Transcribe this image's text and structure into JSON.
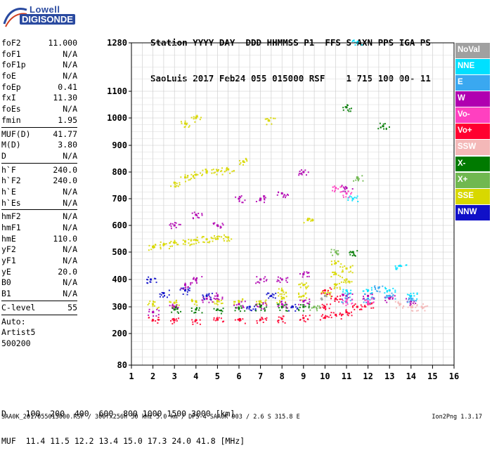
{
  "logo": {
    "line1": "Lowell",
    "line2": "DIGISONDE"
  },
  "header": {
    "line1": "Station YYYY DAY  DDD HHMMSS P1  FFS S AXN PPS IGA PS",
    "line2": "SaoLuis 2017 Feb24 055 015000 RSF    1 715 100 00- 11"
  },
  "params": {
    "group1": [
      {
        "k": "foF2",
        "v": "11.000"
      },
      {
        "k": "foF1",
        "v": "N/A"
      },
      {
        "k": "foF1p",
        "v": "N/A"
      },
      {
        "k": "foE",
        "v": "N/A"
      },
      {
        "k": "foEp",
        "v": "0.41"
      },
      {
        "k": "fxI",
        "v": "11.30"
      },
      {
        "k": "foEs",
        "v": "N/A"
      },
      {
        "k": "fmin",
        "v": "1.95"
      }
    ],
    "group2": [
      {
        "k": "MUF(D)",
        "v": "41.77"
      },
      {
        "k": "M(D)",
        "v": "3.80"
      },
      {
        "k": "D",
        "v": "N/A"
      }
    ],
    "group3": [
      {
        "k": "h`F",
        "v": "240.0"
      },
      {
        "k": "h`F2",
        "v": "240.0"
      },
      {
        "k": "h`E",
        "v": "N/A"
      },
      {
        "k": "h`Es",
        "v": "N/A"
      }
    ],
    "group4": [
      {
        "k": "hmF2",
        "v": "N/A"
      },
      {
        "k": "hmF1",
        "v": "N/A"
      },
      {
        "k": "hmE",
        "v": "110.0"
      },
      {
        "k": "yF2",
        "v": "N/A"
      },
      {
        "k": "yF1",
        "v": "N/A"
      },
      {
        "k": "yE",
        "v": "20.0"
      },
      {
        "k": "B0",
        "v": "N/A"
      },
      {
        "k": "B1",
        "v": "N/A"
      }
    ],
    "group5": [
      {
        "k": "C-level",
        "v": "55"
      }
    ],
    "auto": [
      "Auto:",
      "Artist5",
      "500200"
    ]
  },
  "legend": [
    {
      "label": "NoVal",
      "color": "#a0a0a0"
    },
    {
      "label": "NNE",
      "color": "#00e0ff"
    },
    {
      "label": "E",
      "color": "#3aa8f0"
    },
    {
      "label": "W",
      "color": "#b000b0"
    },
    {
      "label": "Vo-",
      "color": "#ff40c0"
    },
    {
      "label": "Vo+",
      "color": "#ff0030"
    },
    {
      "label": "SSW",
      "color": "#f4b8b8"
    },
    {
      "label": "X-",
      "color": "#007a00"
    },
    {
      "label": "X+",
      "color": "#70b850"
    },
    {
      "label": "SSE",
      "color": "#d8d800"
    },
    {
      "label": "NNW",
      "color": "#1010c8"
    }
  ],
  "bottom": {
    "line1": "D    100  200  400  600  800 1000 1500 3000 [km]",
    "line2": "MUF  11.4 11.5 12.2 13.4 15.0 17.3 24.0 41.8 [MHz]"
  },
  "footer": {
    "left": "SAA0K_2017055015000.RSF / 300fx256h 50 kHz 5.0 km / DPS-4 SAA0K 903 / 2.6 S 315.8 E",
    "right": "Ion2Png 1.3.17"
  },
  "chart_data": {
    "type": "scatter",
    "title": "",
    "xlabel": "",
    "ylabel": "",
    "xlim": [
      1,
      16
    ],
    "ylim": [
      80,
      1280
    ],
    "y_scale": "quasi-log",
    "x_ticks": [
      "1",
      "2",
      "3",
      "4",
      "5",
      "6",
      "7",
      "8",
      "9",
      "10",
      "11",
      "12",
      "13",
      "14",
      "15",
      "16"
    ],
    "y_ticks": [
      "80",
      "200",
      "300",
      "400",
      "500",
      "600",
      "700",
      "800",
      "900",
      "1000",
      "1100",
      "1280"
    ],
    "grid": true,
    "legend_position": "right",
    "series": [
      {
        "name": "SSE",
        "color": "#d8d800",
        "points": [
          [
            2.0,
            520
          ],
          [
            2.5,
            528
          ],
          [
            3.0,
            535
          ],
          [
            3.5,
            540
          ],
          [
            4.0,
            545
          ],
          [
            4.5,
            548
          ],
          [
            5.0,
            550
          ],
          [
            5.5,
            555
          ],
          [
            3.0,
            760
          ],
          [
            3.5,
            780
          ],
          [
            4.0,
            790
          ],
          [
            4.5,
            800
          ],
          [
            5.0,
            805
          ],
          [
            5.5,
            810
          ],
          [
            3.5,
            980
          ],
          [
            4.0,
            1000
          ],
          [
            2.0,
            310
          ],
          [
            3.0,
            315
          ],
          [
            4.0,
            320
          ],
          [
            5.0,
            320
          ],
          [
            6.0,
            320
          ],
          [
            7.0,
            320
          ],
          [
            8.0,
            330
          ],
          [
            9.0,
            340
          ],
          [
            10.0,
            350
          ],
          [
            10.5,
            380
          ],
          [
            10.5,
            420
          ],
          [
            10.5,
            460
          ],
          [
            11.0,
            400
          ],
          [
            11.0,
            440
          ],
          [
            6.2,
            840
          ],
          [
            7.4,
            990
          ],
          [
            8.0,
            360
          ],
          [
            9.0,
            380
          ],
          [
            9.2,
            620
          ]
        ]
      },
      {
        "name": "W",
        "color": "#b000b0",
        "points": [
          [
            2.0,
            280
          ],
          [
            3.0,
            300
          ],
          [
            3.5,
            380
          ],
          [
            4.0,
            400
          ],
          [
            4.5,
            330
          ],
          [
            5.0,
            340
          ],
          [
            6.0,
            310
          ],
          [
            7.0,
            305
          ],
          [
            7.0,
            400
          ],
          [
            8.0,
            310
          ],
          [
            8.0,
            400
          ],
          [
            9.0,
            320
          ],
          [
            9.0,
            420
          ],
          [
            3.0,
            600
          ],
          [
            4.0,
            640
          ],
          [
            5.0,
            600
          ],
          [
            6.0,
            700
          ],
          [
            7.0,
            700
          ],
          [
            8.0,
            720
          ],
          [
            9.0,
            800
          ],
          [
            11.0,
            740
          ],
          [
            11.0,
            340
          ],
          [
            12.0,
            340
          ],
          [
            13.0,
            330
          ],
          [
            14.0,
            320
          ]
        ]
      },
      {
        "name": "Vo+",
        "color": "#ff0030",
        "points": [
          [
            2.0,
            250
          ],
          [
            3.0,
            250
          ],
          [
            4.0,
            250
          ],
          [
            5.0,
            252
          ],
          [
            6.0,
            252
          ],
          [
            7.0,
            252
          ],
          [
            8.0,
            255
          ],
          [
            9.0,
            258
          ],
          [
            10.0,
            260
          ],
          [
            10.5,
            270
          ],
          [
            11.0,
            280
          ],
          [
            11.5,
            300
          ],
          [
            12.0,
            310
          ],
          [
            10.0,
            300
          ],
          [
            10.5,
            330
          ],
          [
            10.0,
            360
          ]
        ]
      },
      {
        "name": "NNW",
        "color": "#1010c8",
        "points": [
          [
            1.9,
            400
          ],
          [
            2.5,
            350
          ],
          [
            3.5,
            360
          ],
          [
            4.5,
            340
          ],
          [
            6.5,
            300
          ],
          [
            7.5,
            340
          ],
          [
            8.5,
            300
          ]
        ]
      },
      {
        "name": "NNE",
        "color": "#00e0ff",
        "points": [
          [
            11.5,
            1280
          ],
          [
            11.0,
            360
          ],
          [
            12.0,
            360
          ],
          [
            13.0,
            360
          ],
          [
            13.5,
            450
          ],
          [
            14.0,
            340
          ],
          [
            11.3,
            700
          ]
        ]
      },
      {
        "name": "X-",
        "color": "#007a00",
        "points": [
          [
            3.0,
            290
          ],
          [
            4.0,
            290
          ],
          [
            5.0,
            290
          ],
          [
            6.0,
            295
          ],
          [
            7.0,
            300
          ],
          [
            8.0,
            300
          ],
          [
            9.0,
            300
          ],
          [
            11.0,
            1040
          ],
          [
            12.7,
            970
          ],
          [
            11.3,
            500
          ]
        ]
      },
      {
        "name": "E",
        "color": "#3aa8f0",
        "points": [
          [
            11.0,
            330
          ],
          [
            12.0,
            330
          ],
          [
            13.0,
            340
          ],
          [
            14.0,
            330
          ],
          [
            12.5,
            370
          ]
        ]
      },
      {
        "name": "SSW",
        "color": "#f4b8b8",
        "points": [
          [
            14.0,
            300
          ],
          [
            14.5,
            300
          ],
          [
            13.5,
            310
          ]
        ]
      },
      {
        "name": "Vo-",
        "color": "#ff40c0",
        "points": [
          [
            11.0,
            320
          ],
          [
            12.0,
            320
          ],
          [
            10.5,
            740
          ],
          [
            11.0,
            720
          ]
        ]
      },
      {
        "name": "X+",
        "color": "#70b850",
        "points": [
          [
            11.5,
            780
          ],
          [
            10.5,
            500
          ],
          [
            9.5,
            300
          ]
        ]
      },
      {
        "name": "NoVal",
        "color": "#a0a0a0",
        "points": [
          [
            10.0,
            340
          ]
        ]
      }
    ]
  }
}
